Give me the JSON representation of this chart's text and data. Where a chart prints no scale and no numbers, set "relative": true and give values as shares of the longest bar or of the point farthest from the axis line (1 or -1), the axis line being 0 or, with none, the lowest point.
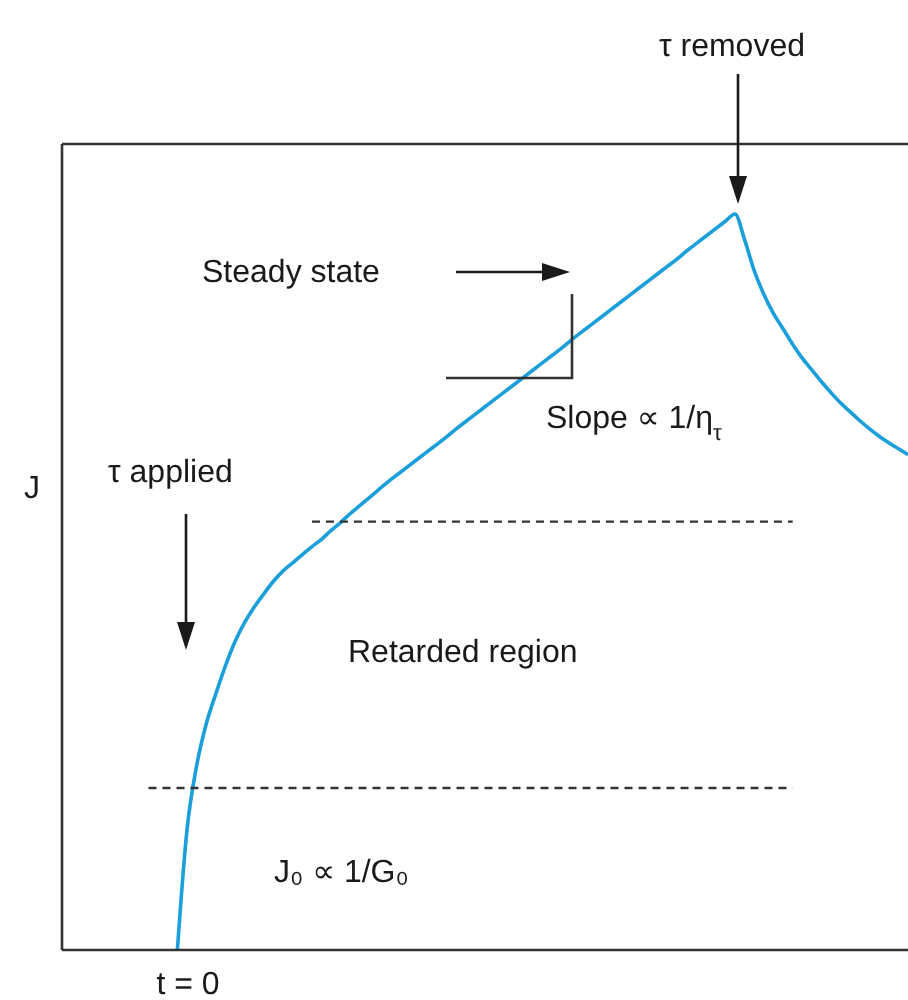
{
  "chart_data": {
    "type": "line",
    "relative": true,
    "ylabel": "J",
    "marker": "none",
    "categories": [
      null,
      null,
      null,
      null,
      null,
      null,
      null,
      null,
      null,
      null,
      null,
      null,
      null,
      null,
      null,
      null,
      null,
      null,
      null,
      null,
      null,
      null,
      null,
      null,
      null,
      null,
      null,
      null,
      null,
      null,
      null,
      null,
      null,
      null,
      null,
      null,
      null,
      null,
      null,
      null,
      null,
      null,
      null,
      null,
      null,
      null,
      null,
      null,
      null,
      null,
      null,
      null,
      null,
      null,
      null,
      null,
      null,
      null,
      null,
      null,
      null,
      null,
      null,
      null,
      null,
      null,
      null,
      null,
      null,
      null,
      null,
      null,
      null,
      null,
      null,
      null,
      null,
      null,
      null,
      null,
      null,
      null,
      null,
      null,
      null,
      null,
      null,
      null,
      null
    ],
    "series": [
      {
        "color": "#1a9fdb",
        "values": [
          null,
          null,
          null,
          null,
          null,
          null,
          null,
          null,
          null,
          null,
          null,
          null,
          0,
          0.163,
          0.25,
          0.307,
          0.348,
          0.386,
          0.419,
          0.445,
          0.466,
          0.484,
          0.501,
          0.515,
          0.526,
          0.537,
          0.548,
          0.558,
          0.57,
          0.581,
          0.593,
          0.604,
          0.615,
          0.626,
          0.637,
          0.647,
          0.657,
          0.667,
          0.677,
          0.687,
          0.697,
          0.708,
          0.718,
          0.728,
          0.738,
          0.748,
          0.758,
          0.768,
          0.778,
          0.788,
          0.798,
          0.808,
          0.818,
          0.829,
          0.839,
          0.849,
          0.859,
          0.869,
          0.879,
          0.889,
          0.899,
          0.909,
          0.919,
          0.929,
          0.939,
          0.95,
          0.96,
          0.97,
          0.98,
          0.99,
          1,
          0.965,
          0.923,
          0.891,
          0.865,
          0.844,
          0.823,
          0.804,
          0.788,
          0.772,
          0.757,
          0.743,
          0.731,
          0.719,
          0.708,
          0.698,
          0.689,
          0.681,
          0.673
        ]
      },
      {
        "color": "#333333",
        "line_style": "dashed",
        "values": [
          null,
          null,
          null,
          null,
          null,
          null,
          null,
          null,
          null,
          0.22,
          0.22,
          0.22,
          0.22,
          0.22,
          0.22,
          0.22,
          0.22,
          0.22,
          0.22,
          0.22,
          0.22,
          0.22,
          0.22,
          0.22,
          0.22,
          0.22,
          0.22,
          0.22,
          0.22,
          0.22,
          0.22,
          0.22,
          0.22,
          0.22,
          0.22,
          0.22,
          0.22,
          0.22,
          0.22,
          0.22,
          0.22,
          0.22,
          0.22,
          0.22,
          0.22,
          0.22,
          0.22,
          0.22,
          0.22,
          0.22,
          0.22,
          0.22,
          0.22,
          0.22,
          0.22,
          0.22,
          0.22,
          0.22,
          0.22,
          0.22,
          0.22,
          0.22,
          0.22,
          0.22,
          0.22,
          0.22,
          0.22,
          0.22,
          0.22,
          0.22,
          0.22,
          0.22,
          0.22,
          0.22,
          0.22,
          0.22,
          0.22,
          null,
          null,
          null,
          null,
          null,
          null,
          null,
          null,
          null,
          null,
          null,
          null
        ]
      },
      {
        "color": "#333333",
        "line_style": "dashed",
        "values": [
          null,
          null,
          null,
          null,
          null,
          null,
          null,
          null,
          null,
          null,
          null,
          null,
          null,
          null,
          null,
          null,
          null,
          null,
          null,
          null,
          null,
          null,
          null,
          null,
          null,
          null,
          0.582,
          0.582,
          0.582,
          0.582,
          0.582,
          0.582,
          0.582,
          0.582,
          0.582,
          0.582,
          0.582,
          0.582,
          0.582,
          0.582,
          0.582,
          0.582,
          0.582,
          0.582,
          0.582,
          0.582,
          0.582,
          0.582,
          0.582,
          0.582,
          0.582,
          0.582,
          0.582,
          0.582,
          0.582,
          0.582,
          0.582,
          0.582,
          0.582,
          0.582,
          0.582,
          0.582,
          0.582,
          0.582,
          0.582,
          0.582,
          0.582,
          0.582,
          0.582,
          0.582,
          0.582,
          0.582,
          0.582,
          0.582,
          0.582,
          0.582,
          0.582,
          null,
          null,
          null,
          null,
          null,
          null,
          null,
          null,
          null,
          null,
          null,
          null
        ]
      }
    ],
    "annotations": [
      "τ removed",
      "Steady state",
      "Slope ∝ 1/η$_{τ}$",
      "τ applied",
      "Retarded region",
      "J₀ ∝ 1/G₀",
      "t = 0"
    ]
  }
}
